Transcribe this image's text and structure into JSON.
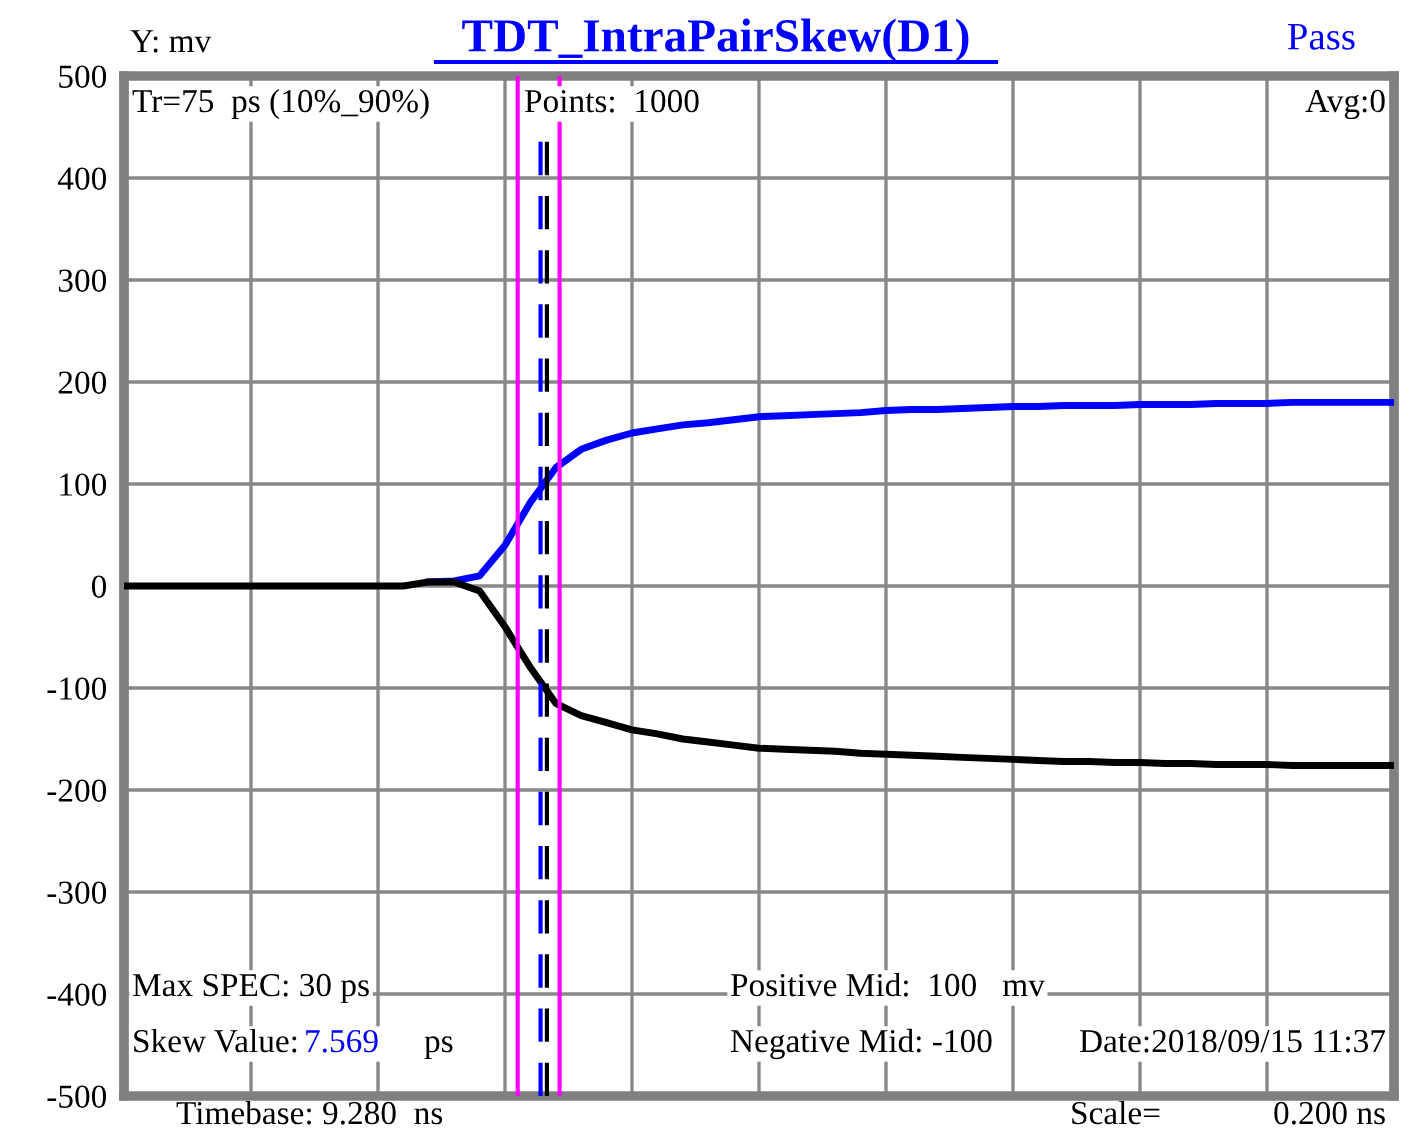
{
  "chart_data": {
    "type": "line",
    "title": "TDT_IntraPairSkew(D1)",
    "ylabel": "Y: mv",
    "categories": [
      null,
      null,
      null,
      null,
      null,
      null,
      null,
      null,
      null,
      null,
      null,
      null,
      null,
      null,
      null,
      null,
      null,
      null,
      null,
      null,
      null,
      null,
      null,
      null,
      null,
      null,
      null,
      null,
      null,
      null,
      null,
      null,
      null,
      null,
      null,
      null,
      null,
      null,
      null,
      null,
      null,
      null,
      null,
      null,
      null,
      null,
      null,
      null,
      null,
      null,
      null
    ],
    "series": [
      {
        "color": "#0000ff",
        "values": [
          null,
          null,
          null,
          null,
          null,
          null,
          null,
          null,
          null,
          null,
          null,
          null,
          4,
          5,
          10,
          40,
          82,
          116,
          134,
          143,
          150,
          154,
          158,
          160,
          163,
          166,
          167,
          168,
          169,
          170,
          172,
          173,
          173,
          174,
          175,
          176,
          176,
          177,
          177,
          177,
          178,
          178,
          178,
          179,
          179,
          179,
          180,
          180,
          180,
          180,
          180
        ]
      },
      {
        "color": "#000000",
        "values": [
          0,
          0,
          0,
          0,
          0,
          0,
          0,
          0,
          0,
          0,
          0,
          0,
          4,
          4,
          -5,
          -40,
          -80,
          -115,
          -127,
          -134,
          -141,
          -145,
          -150,
          -153,
          -156,
          -159,
          -160,
          -161,
          -162,
          -164,
          -165,
          -166,
          -167,
          -168,
          -169,
          -170,
          -171,
          -172,
          -172,
          -173,
          -173,
          -174,
          -174,
          -175,
          -175,
          -175,
          -176,
          -176,
          -176,
          -176,
          -176
        ]
      }
    ],
    "ylim": [
      -500,
      500
    ],
    "yticks": [
      -500,
      -400,
      -300,
      -200,
      -100,
      0,
      100,
      200,
      300,
      400,
      500
    ],
    "grid": true,
    "marker": "none",
    "line_style": "solid",
    "annotations": [
      "Pass",
      "Tr=75  ps (10%_90%)",
      "Points:  1000",
      "Avg:0",
      "Max SPEC: 30 ps",
      "Skew Value:",
      "7.569",
      "ps",
      "Positive Mid:  100   mv",
      "Negative Mid: -100",
      "Date:2018/09/15 11:37",
      "Timebase: 9.280  ns",
      "Scale=",
      "0.200 ns"
    ]
  }
}
